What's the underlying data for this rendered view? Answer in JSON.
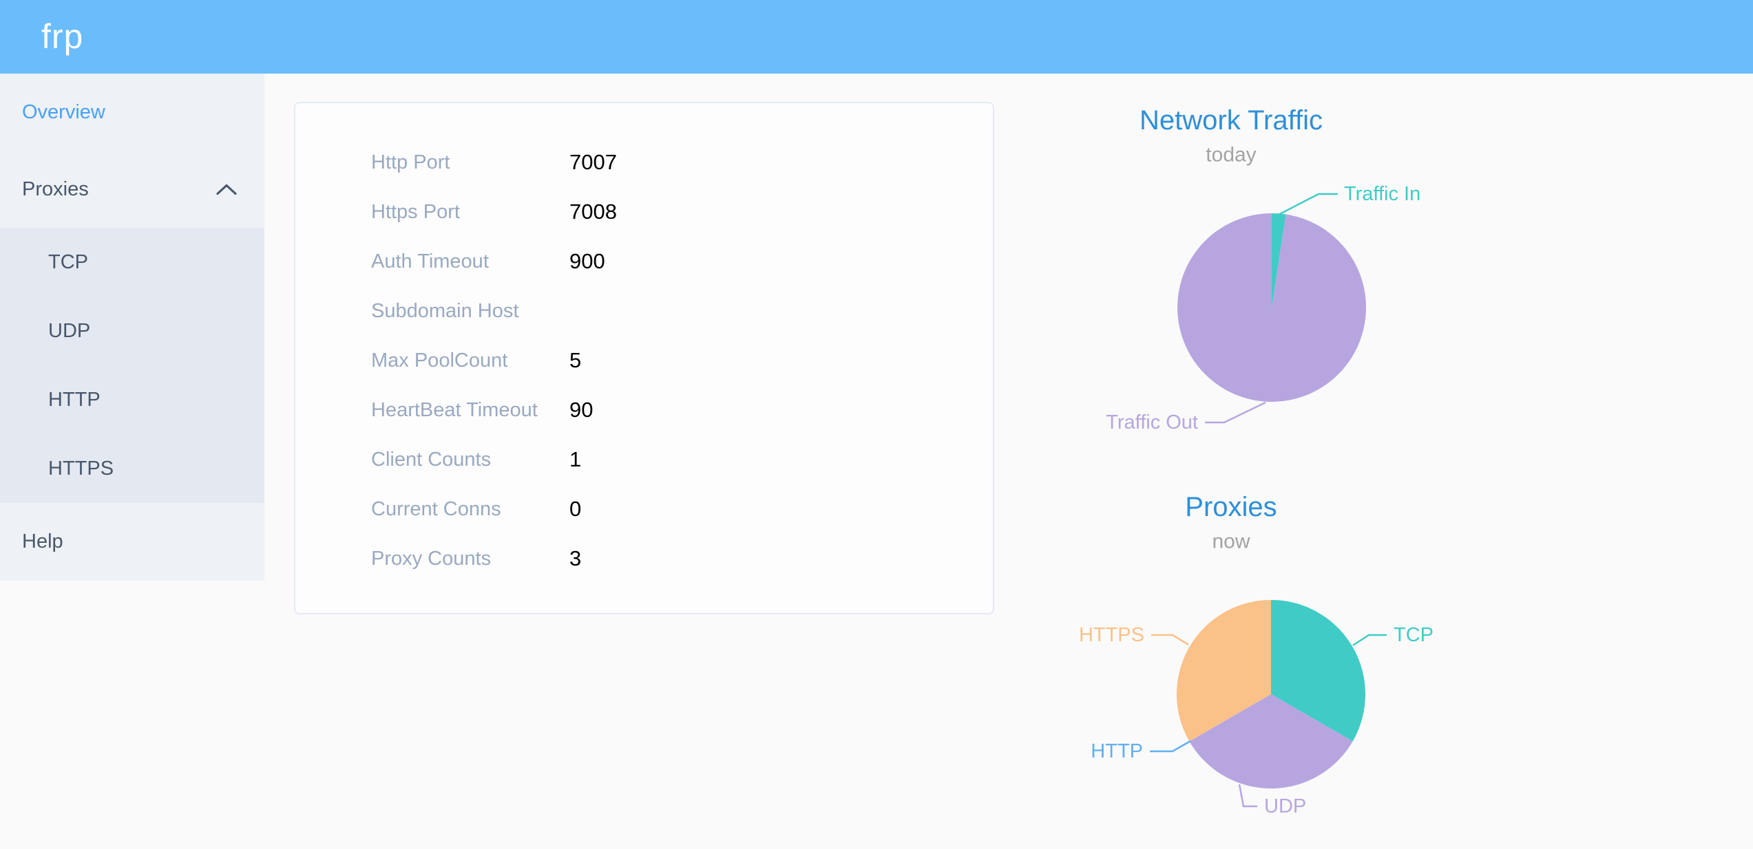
{
  "app": {
    "logo_text": "frp"
  },
  "theme": {
    "header_bg": "#6bbcfa",
    "page_bg": "#fafafa",
    "sidebar_bg": "#eef1f6",
    "submenu_bg": "#e4e8f1",
    "menu_text": "#48576a",
    "active_menu_text": "#4aa0f5",
    "card_bg": "#fdfdfe",
    "card_border": "#e6eaf5",
    "label_text": "#99a9bf",
    "value_text": "#000000",
    "chart_title": "#2d8fd8",
    "chart_subtitle": "#a3a3a3"
  },
  "sidebar": {
    "overview": "Overview",
    "proxies": "Proxies",
    "tcp": "TCP",
    "udp": "UDP",
    "http": "HTTP",
    "https": "HTTPS",
    "help": "Help"
  },
  "server_info": {
    "rows": [
      {
        "label": "Http Port",
        "value": "7007"
      },
      {
        "label": "Https Port",
        "value": "7008"
      },
      {
        "label": "Auth Timeout",
        "value": "900"
      },
      {
        "label": "Subdomain Host",
        "value": ""
      },
      {
        "label": "Max PoolCount",
        "value": "5"
      },
      {
        "label": "HeartBeat Timeout",
        "value": "90"
      },
      {
        "label": "Client Counts",
        "value": "1"
      },
      {
        "label": "Current Conns",
        "value": "0"
      },
      {
        "label": "Proxy Counts",
        "value": "3"
      }
    ]
  },
  "chart_data": [
    {
      "type": "pie",
      "title": "Network Traffic",
      "subtitle": "today",
      "legend_position": "callout-labels",
      "slices": [
        {
          "label": "Traffic In",
          "percent": 2.4,
          "color": "#41cbc6"
        },
        {
          "label": "Traffic Out",
          "percent": 97.6,
          "color": "#b7a5e0"
        }
      ]
    },
    {
      "type": "pie",
      "title": "Proxies",
      "subtitle": "now",
      "legend_position": "callout-labels",
      "slices": [
        {
          "label": "TCP",
          "percent": 33.33,
          "color": "#41cbc6"
        },
        {
          "label": "UDP",
          "percent": 33.33,
          "color": "#b7a5e0"
        },
        {
          "label": "HTTP",
          "percent": 0,
          "color": "#61aff0"
        },
        {
          "label": "HTTPS",
          "percent": 33.34,
          "color": "#fac189"
        }
      ]
    }
  ]
}
